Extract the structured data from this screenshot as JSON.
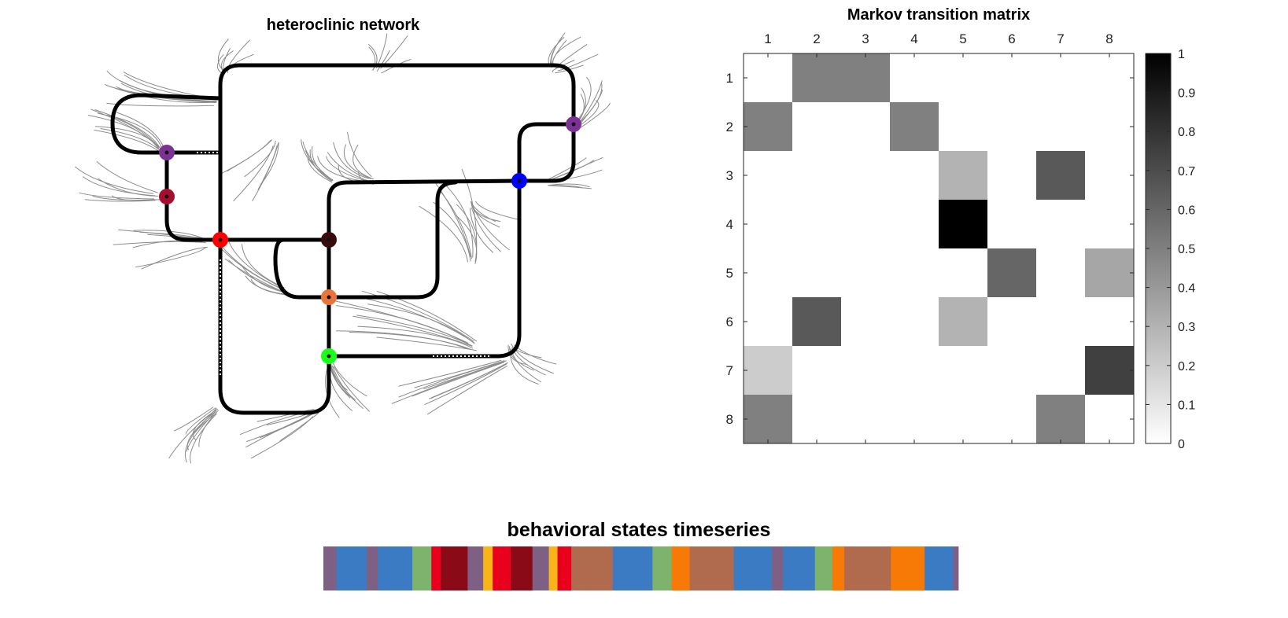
{
  "chart_data": [
    {
      "type": "diagram",
      "title": "heteroclinic network",
      "nodes": [
        {
          "id": "purple-upper-left",
          "color": "#7B3294"
        },
        {
          "id": "crimson-left",
          "color": "#A50F2D"
        },
        {
          "id": "red-center",
          "color": "#FF0000"
        },
        {
          "id": "dark-brown-center",
          "color": "#3B0A0A"
        },
        {
          "id": "orange-center",
          "color": "#E8743B"
        },
        {
          "id": "green-lower",
          "color": "#1AFF1A"
        },
        {
          "id": "blue-right",
          "color": "#0000FF"
        },
        {
          "id": "purple-right",
          "color": "#7B3294"
        }
      ]
    },
    {
      "type": "heatmap",
      "title": "Markov transition matrix",
      "x_labels": [
        "1",
        "2",
        "3",
        "4",
        "5",
        "6",
        "7",
        "8"
      ],
      "y_labels": [
        "1",
        "2",
        "3",
        "4",
        "5",
        "6",
        "7",
        "8"
      ],
      "values": [
        [
          0,
          0.5,
          0.5,
          0,
          0,
          0,
          0,
          0
        ],
        [
          0.5,
          0,
          0,
          0.5,
          0,
          0,
          0,
          0
        ],
        [
          0,
          0,
          0,
          0,
          0.3,
          0,
          0.65,
          0
        ],
        [
          0,
          0,
          0,
          0,
          1,
          0,
          0,
          0
        ],
        [
          0,
          0,
          0,
          0,
          0,
          0.6,
          0,
          0.35
        ],
        [
          0,
          0.65,
          0,
          0,
          0.3,
          0,
          0,
          0
        ],
        [
          0.2,
          0,
          0,
          0,
          0,
          0,
          0,
          0.75
        ],
        [
          0.5,
          0,
          0,
          0,
          0,
          0,
          0.5,
          0
        ]
      ],
      "colorbar": {
        "range": [
          0,
          1
        ],
        "ticks": [
          "0",
          "0.1",
          "0.2",
          "0.3",
          "0.4",
          "0.5",
          "0.6",
          "0.7",
          "0.8",
          "0.9",
          "1"
        ],
        "colormap": "white-to-black"
      }
    },
    {
      "type": "timeline",
      "title": "behavioral states timeseries",
      "segments": [
        {
          "color": "#7F6085",
          "duration": 1.5
        },
        {
          "color": "#3B7BC4",
          "duration": 3.5
        },
        {
          "color": "#7F6085",
          "duration": 1.3
        },
        {
          "color": "#3B7BC4",
          "duration": 4
        },
        {
          "color": "#7DB36C",
          "duration": 2.2
        },
        {
          "color": "#E8001C",
          "duration": 1.1
        },
        {
          "color": "#8B0A17",
          "duration": 3.1
        },
        {
          "color": "#7F6085",
          "duration": 1.8
        },
        {
          "color": "#F8B418",
          "duration": 1.1
        },
        {
          "color": "#E8001C",
          "duration": 2.1
        },
        {
          "color": "#8B0A17",
          "duration": 2.5
        },
        {
          "color": "#7F6085",
          "duration": 1.9
        },
        {
          "color": "#F8B418",
          "duration": 1
        },
        {
          "color": "#E8001C",
          "duration": 1.6
        },
        {
          "color": "#B06B4F",
          "duration": 4.8
        },
        {
          "color": "#3B7BC4",
          "duration": 4.6
        },
        {
          "color": "#7DB36C",
          "duration": 2.2
        },
        {
          "color": "#F77A07",
          "duration": 2.1
        },
        {
          "color": "#B06B4F",
          "duration": 5.1
        },
        {
          "color": "#3B7BC4",
          "duration": 4.4
        },
        {
          "color": "#7F6085",
          "duration": 1.3
        },
        {
          "color": "#3B7BC4",
          "duration": 3.7
        },
        {
          "color": "#7DB36C",
          "duration": 2
        },
        {
          "color": "#F77A07",
          "duration": 1.4
        },
        {
          "color": "#B06B4F",
          "duration": 5.4
        },
        {
          "color": "#F77A07",
          "duration": 3.9
        },
        {
          "color": "#3B7BC4",
          "duration": 3.3
        },
        {
          "color": "#7F6085",
          "duration": 0.6
        }
      ]
    }
  ]
}
